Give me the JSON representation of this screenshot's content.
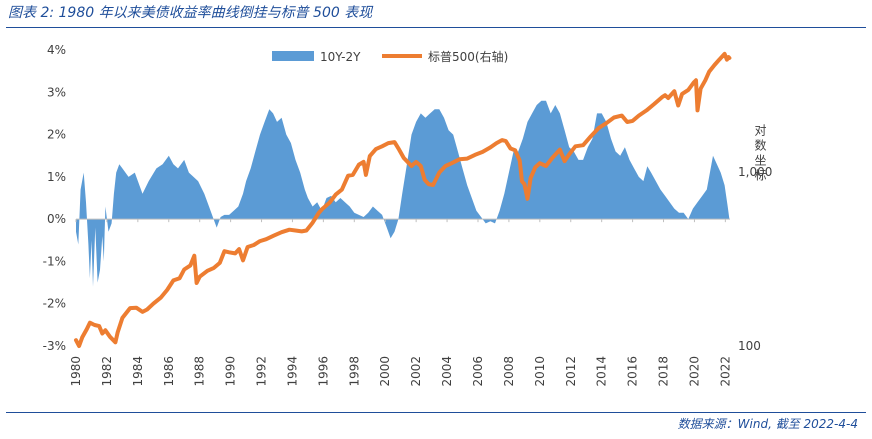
{
  "figure": {
    "title": "图表 2: 1980 年以来美债收益率曲线倒挂与标普 500 表现",
    "source": "数据来源：Wind, 截至 2022-4-4"
  },
  "colors": {
    "spread": "#5b9bd5",
    "sp500": "#ed7d31",
    "axis_text": "#404040",
    "rule": "#1f4e9a"
  },
  "chart_data": {
    "type": "area",
    "title": "",
    "xlabel": "",
    "x_ticks": [
      "1980",
      "1982",
      "1984",
      "1986",
      "1988",
      "1990",
      "1992",
      "1994",
      "1996",
      "1998",
      "2000",
      "2002",
      "2004",
      "2006",
      "2008",
      "2010",
      "2012",
      "2014",
      "2016",
      "2018",
      "2020",
      "2022"
    ],
    "xlim": [
      1980,
      2022.3
    ],
    "left_axis": {
      "label": "",
      "ylim": [
        -3,
        4
      ],
      "ticks": [
        "-3%",
        "-2%",
        "-1%",
        "0%",
        "1%",
        "2%",
        "3%",
        "4%"
      ]
    },
    "right_axis": {
      "label": "对数坐标",
      "scale": "log",
      "ylim": [
        100,
        5000
      ],
      "ticks": [
        "100",
        "1,000"
      ]
    },
    "legend": {
      "position": "top-center",
      "entries": [
        "10Y-2Y",
        "标普500(右轴)"
      ]
    },
    "series": [
      {
        "name": "10Y-2Y",
        "type": "area",
        "axis": "left",
        "color": "#5b9bd5",
        "points": [
          [
            1980.0,
            -0.3
          ],
          [
            1980.15,
            -0.6
          ],
          [
            1980.3,
            0.7
          ],
          [
            1980.5,
            1.1
          ],
          [
            1980.65,
            0.4
          ],
          [
            1980.8,
            -0.6
          ],
          [
            1980.9,
            -1.4
          ],
          [
            1981.0,
            -0.5
          ],
          [
            1981.1,
            -1.6
          ],
          [
            1981.25,
            -0.2
          ],
          [
            1981.4,
            -1.5
          ],
          [
            1981.55,
            -1.2
          ],
          [
            1981.7,
            -0.4
          ],
          [
            1981.8,
            -1.0
          ],
          [
            1981.9,
            0.3
          ],
          [
            1982.1,
            -0.3
          ],
          [
            1982.3,
            -0.1
          ],
          [
            1982.45,
            0.6
          ],
          [
            1982.6,
            1.1
          ],
          [
            1982.8,
            1.3
          ],
          [
            1983.0,
            1.2
          ],
          [
            1983.4,
            1.0
          ],
          [
            1983.8,
            1.1
          ],
          [
            1984.3,
            0.6
          ],
          [
            1984.7,
            0.9
          ],
          [
            1985.2,
            1.2
          ],
          [
            1985.6,
            1.3
          ],
          [
            1986.0,
            1.5
          ],
          [
            1986.3,
            1.3
          ],
          [
            1986.6,
            1.2
          ],
          [
            1987.0,
            1.4
          ],
          [
            1987.3,
            1.1
          ],
          [
            1987.6,
            1.0
          ],
          [
            1987.9,
            0.9
          ],
          [
            1988.3,
            0.6
          ],
          [
            1988.6,
            0.3
          ],
          [
            1988.9,
            0.0
          ],
          [
            1989.1,
            -0.2
          ],
          [
            1989.35,
            0.05
          ],
          [
            1989.6,
            0.1
          ],
          [
            1989.9,
            0.1
          ],
          [
            1990.2,
            0.2
          ],
          [
            1990.5,
            0.3
          ],
          [
            1990.8,
            0.6
          ],
          [
            1991.0,
            0.9
          ],
          [
            1991.3,
            1.2
          ],
          [
            1991.6,
            1.6
          ],
          [
            1991.9,
            2.0
          ],
          [
            1992.2,
            2.3
          ],
          [
            1992.5,
            2.6
          ],
          [
            1992.75,
            2.5
          ],
          [
            1993.0,
            2.3
          ],
          [
            1993.3,
            2.4
          ],
          [
            1993.6,
            2.0
          ],
          [
            1993.9,
            1.8
          ],
          [
            1994.2,
            1.4
          ],
          [
            1994.5,
            1.1
          ],
          [
            1994.8,
            0.7
          ],
          [
            1995.0,
            0.5
          ],
          [
            1995.3,
            0.3
          ],
          [
            1995.6,
            0.4
          ],
          [
            1995.9,
            0.2
          ],
          [
            1996.2,
            0.5
          ],
          [
            1996.5,
            0.55
          ],
          [
            1996.8,
            0.4
          ],
          [
            1997.1,
            0.5
          ],
          [
            1997.4,
            0.4
          ],
          [
            1997.7,
            0.3
          ],
          [
            1998.0,
            0.15
          ],
          [
            1998.3,
            0.1
          ],
          [
            1998.6,
            0.05
          ],
          [
            1998.9,
            0.15
          ],
          [
            1999.2,
            0.3
          ],
          [
            1999.5,
            0.2
          ],
          [
            1999.8,
            0.1
          ],
          [
            2000.1,
            -0.2
          ],
          [
            2000.35,
            -0.45
          ],
          [
            2000.6,
            -0.3
          ],
          [
            2000.85,
            0.0
          ],
          [
            2001.1,
            0.6
          ],
          [
            2001.4,
            1.3
          ],
          [
            2001.7,
            2.0
          ],
          [
            2002.0,
            2.3
          ],
          [
            2002.3,
            2.5
          ],
          [
            2002.6,
            2.4
          ],
          [
            2002.9,
            2.5
          ],
          [
            2003.2,
            2.6
          ],
          [
            2003.5,
            2.6
          ],
          [
            2003.8,
            2.4
          ],
          [
            2004.1,
            2.1
          ],
          [
            2004.4,
            2.0
          ],
          [
            2004.7,
            1.6
          ],
          [
            2005.0,
            1.2
          ],
          [
            2005.3,
            0.8
          ],
          [
            2005.6,
            0.5
          ],
          [
            2005.9,
            0.2
          ],
          [
            2006.2,
            0.05
          ],
          [
            2006.5,
            -0.1
          ],
          [
            2006.8,
            -0.05
          ],
          [
            2007.1,
            -0.1
          ],
          [
            2007.4,
            0.2
          ],
          [
            2007.7,
            0.6
          ],
          [
            2008.0,
            1.1
          ],
          [
            2008.3,
            1.6
          ],
          [
            2008.6,
            1.6
          ],
          [
            2008.9,
            1.9
          ],
          [
            2009.2,
            2.3
          ],
          [
            2009.5,
            2.5
          ],
          [
            2009.8,
            2.7
          ],
          [
            2010.1,
            2.8
          ],
          [
            2010.4,
            2.8
          ],
          [
            2010.7,
            2.5
          ],
          [
            2011.0,
            2.7
          ],
          [
            2011.3,
            2.5
          ],
          [
            2011.6,
            2.1
          ],
          [
            2011.9,
            1.7
          ],
          [
            2012.2,
            1.6
          ],
          [
            2012.5,
            1.4
          ],
          [
            2012.8,
            1.4
          ],
          [
            2013.1,
            1.7
          ],
          [
            2013.4,
            1.9
          ],
          [
            2013.7,
            2.5
          ],
          [
            2014.0,
            2.5
          ],
          [
            2014.3,
            2.3
          ],
          [
            2014.6,
            1.9
          ],
          [
            2014.9,
            1.6
          ],
          [
            2015.2,
            1.5
          ],
          [
            2015.5,
            1.7
          ],
          [
            2015.8,
            1.4
          ],
          [
            2016.1,
            1.2
          ],
          [
            2016.4,
            1.0
          ],
          [
            2016.7,
            0.9
          ],
          [
            2016.95,
            1.25
          ],
          [
            2017.2,
            1.1
          ],
          [
            2017.5,
            0.9
          ],
          [
            2017.8,
            0.7
          ],
          [
            2018.1,
            0.55
          ],
          [
            2018.4,
            0.4
          ],
          [
            2018.7,
            0.25
          ],
          [
            2019.0,
            0.15
          ],
          [
            2019.3,
            0.15
          ],
          [
            2019.6,
            0.0
          ],
          [
            2019.9,
            0.25
          ],
          [
            2020.2,
            0.4
          ],
          [
            2020.5,
            0.55
          ],
          [
            2020.8,
            0.7
          ],
          [
            2021.0,
            1.1
          ],
          [
            2021.2,
            1.5
          ],
          [
            2021.45,
            1.3
          ],
          [
            2021.7,
            1.1
          ],
          [
            2021.95,
            0.8
          ],
          [
            2022.15,
            0.3
          ],
          [
            2022.26,
            0.0
          ]
        ]
      },
      {
        "name": "标普500(右轴)",
        "type": "line",
        "axis": "right",
        "color": "#ed7d31",
        "points": [
          [
            1980.0,
            108
          ],
          [
            1980.2,
            100
          ],
          [
            1980.4,
            112
          ],
          [
            1980.7,
            125
          ],
          [
            1980.9,
            136
          ],
          [
            1981.2,
            132
          ],
          [
            1981.5,
            130
          ],
          [
            1981.7,
            118
          ],
          [
            1981.9,
            123
          ],
          [
            1982.2,
            113
          ],
          [
            1982.55,
            105
          ],
          [
            1982.7,
            120
          ],
          [
            1983.0,
            145
          ],
          [
            1983.5,
            165
          ],
          [
            1983.9,
            166
          ],
          [
            1984.3,
            157
          ],
          [
            1984.6,
            162
          ],
          [
            1985.0,
            175
          ],
          [
            1985.5,
            190
          ],
          [
            1985.9,
            210
          ],
          [
            1986.3,
            238
          ],
          [
            1986.7,
            245
          ],
          [
            1987.0,
            275
          ],
          [
            1987.4,
            290
          ],
          [
            1987.65,
            330
          ],
          [
            1987.8,
            230
          ],
          [
            1988.0,
            250
          ],
          [
            1988.5,
            270
          ],
          [
            1988.9,
            280
          ],
          [
            1989.3,
            300
          ],
          [
            1989.6,
            350
          ],
          [
            1989.9,
            345
          ],
          [
            1990.3,
            340
          ],
          [
            1990.55,
            360
          ],
          [
            1990.8,
            310
          ],
          [
            1991.1,
            370
          ],
          [
            1991.5,
            380
          ],
          [
            1991.9,
            400
          ],
          [
            1992.3,
            410
          ],
          [
            1992.8,
            430
          ],
          [
            1993.3,
            450
          ],
          [
            1993.8,
            465
          ],
          [
            1994.2,
            460
          ],
          [
            1994.6,
            455
          ],
          [
            1994.9,
            460
          ],
          [
            1995.3,
            510
          ],
          [
            1995.7,
            580
          ],
          [
            1995.95,
            615
          ],
          [
            1996.4,
            665
          ],
          [
            1996.8,
            740
          ],
          [
            1997.2,
            790
          ],
          [
            1997.6,
            950
          ],
          [
            1997.9,
            960
          ],
          [
            1998.3,
            1100
          ],
          [
            1998.6,
            1140
          ],
          [
            1998.75,
            960
          ],
          [
            1999.0,
            1230
          ],
          [
            1999.4,
            1350
          ],
          [
            1999.8,
            1400
          ],
          [
            2000.2,
            1460
          ],
          [
            2000.6,
            1480
          ],
          [
            2000.9,
            1340
          ],
          [
            2001.2,
            1200
          ],
          [
            2001.7,
            1080
          ],
          [
            2002.0,
            1140
          ],
          [
            2002.3,
            1080
          ],
          [
            2002.55,
            900
          ],
          [
            2002.8,
            850
          ],
          [
            2003.1,
            840
          ],
          [
            2003.5,
            990
          ],
          [
            2003.9,
            1080
          ],
          [
            2004.3,
            1120
          ],
          [
            2004.8,
            1180
          ],
          [
            2005.3,
            1190
          ],
          [
            2005.8,
            1250
          ],
          [
            2006.3,
            1300
          ],
          [
            2006.8,
            1380
          ],
          [
            2007.2,
            1460
          ],
          [
            2007.55,
            1520
          ],
          [
            2007.8,
            1500
          ],
          [
            2008.1,
            1360
          ],
          [
            2008.4,
            1330
          ],
          [
            2008.7,
            1160
          ],
          [
            2008.85,
            880
          ],
          [
            2009.0,
            850
          ],
          [
            2009.2,
            700
          ],
          [
            2009.4,
            920
          ],
          [
            2009.7,
            1060
          ],
          [
            2010.0,
            1120
          ],
          [
            2010.4,
            1080
          ],
          [
            2010.8,
            1200
          ],
          [
            2011.3,
            1340
          ],
          [
            2011.6,
            1150
          ],
          [
            2011.9,
            1260
          ],
          [
            2012.3,
            1400
          ],
          [
            2012.8,
            1420
          ],
          [
            2013.3,
            1600
          ],
          [
            2013.8,
            1780
          ],
          [
            2014.3,
            1900
          ],
          [
            2014.8,
            2050
          ],
          [
            2015.3,
            2100
          ],
          [
            2015.65,
            1930
          ],
          [
            2016.0,
            1960
          ],
          [
            2016.4,
            2100
          ],
          [
            2016.9,
            2250
          ],
          [
            2017.4,
            2450
          ],
          [
            2017.9,
            2680
          ],
          [
            2018.1,
            2750
          ],
          [
            2018.3,
            2650
          ],
          [
            2018.7,
            2900
          ],
          [
            2018.95,
            2400
          ],
          [
            2019.2,
            2800
          ],
          [
            2019.6,
            2950
          ],
          [
            2019.95,
            3250
          ],
          [
            2020.1,
            3350
          ],
          [
            2020.2,
            2250
          ],
          [
            2020.4,
            3000
          ],
          [
            2020.7,
            3350
          ],
          [
            2020.95,
            3750
          ],
          [
            2021.3,
            4100
          ],
          [
            2021.6,
            4400
          ],
          [
            2021.95,
            4750
          ],
          [
            2022.1,
            4400
          ],
          [
            2022.2,
            4550
          ],
          [
            2022.26,
            4500
          ]
        ]
      }
    ]
  }
}
